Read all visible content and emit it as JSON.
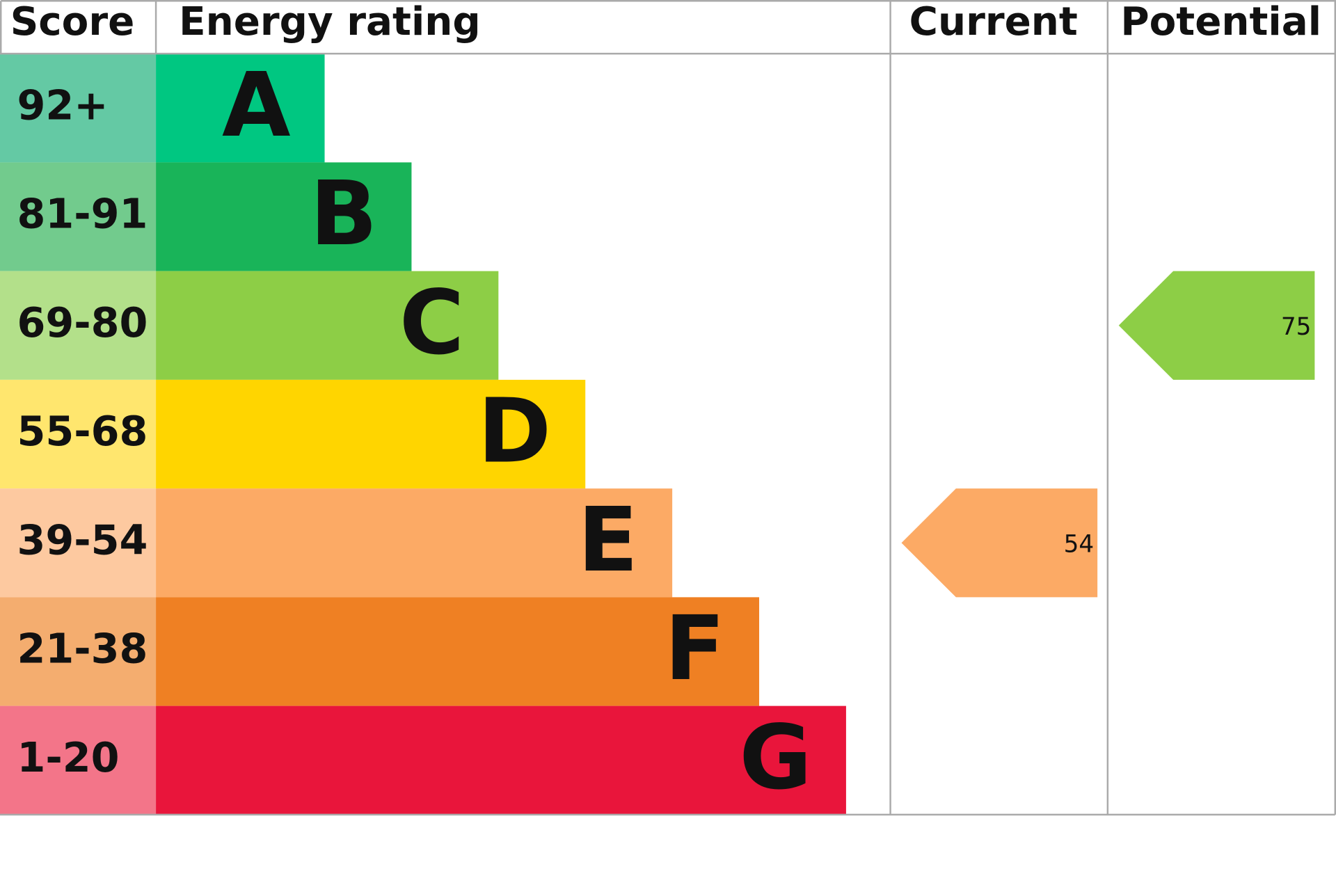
{
  "chart_data": {
    "type": "epc",
    "headers": {
      "score": "Score",
      "rating": "Energy rating",
      "current": "Current",
      "potential": "Potential"
    },
    "bands": [
      {
        "score": "92+",
        "letter": "A",
        "color": "#00c781",
        "score_color": "#64c9a4"
      },
      {
        "score": "81-91",
        "letter": "B",
        "color": "#19b459",
        "score_color": "#72cb8d"
      },
      {
        "score": "69-80",
        "letter": "C",
        "color": "#8dce46",
        "score_color": "#b3e08a"
      },
      {
        "score": "55-68",
        "letter": "D",
        "color": "#ffd500",
        "score_color": "#ffe66e"
      },
      {
        "score": "39-54",
        "letter": "E",
        "color": "#fcaa65",
        "score_color": "#fdc9a0"
      },
      {
        "score": "21-38",
        "letter": "F",
        "color": "#ef8023",
        "score_color": "#f4ad6f"
      },
      {
        "score": "1-20",
        "letter": "G",
        "color": "#e9153b",
        "score_color": "#f37589"
      }
    ],
    "current": 54,
    "potential": 75
  }
}
